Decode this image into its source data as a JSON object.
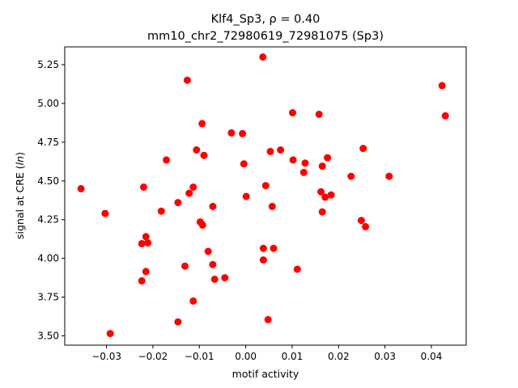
{
  "chart_data": {
    "type": "scatter",
    "title_line1": "Klf4_Sp3, ρ = 0.40",
    "title_line2": "mm10_chr2_72980619_72981075 (Sp3)",
    "xlabel": "motif activity",
    "ylabel": "signal at CRE (ln)",
    "xlim": [
      -0.039,
      0.0475
    ],
    "ylim": [
      3.44,
      5.365
    ],
    "xticks": [
      -0.03,
      -0.02,
      -0.01,
      0.0,
      0.01,
      0.02,
      0.03,
      0.04
    ],
    "xtick_labels": [
      "−0.03",
      "−0.02",
      "−0.01",
      "0.00",
      "0.01",
      "0.02",
      "0.03",
      "0.04"
    ],
    "yticks": [
      3.5,
      3.75,
      4.0,
      4.25,
      4.5,
      4.75,
      5.0,
      5.25
    ],
    "ytick_labels": [
      "3.50",
      "3.75",
      "4.00",
      "4.25",
      "4.50",
      "4.75",
      "5.00",
      "5.25"
    ],
    "grid": false,
    "marker_color": "#ff0000",
    "points": [
      {
        "x": -0.0355,
        "y": 4.45
      },
      {
        "x": -0.0303,
        "y": 4.29
      },
      {
        "x": -0.0292,
        "y": 3.515
      },
      {
        "x": -0.0224,
        "y": 4.095
      },
      {
        "x": -0.0224,
        "y": 3.855
      },
      {
        "x": -0.022,
        "y": 4.46
      },
      {
        "x": -0.0215,
        "y": 4.14
      },
      {
        "x": -0.0215,
        "y": 3.915
      },
      {
        "x": -0.0211,
        "y": 4.1
      },
      {
        "x": -0.0182,
        "y": 4.305
      },
      {
        "x": -0.0171,
        "y": 4.635
      },
      {
        "x": -0.0146,
        "y": 4.36
      },
      {
        "x": -0.0146,
        "y": 3.59
      },
      {
        "x": -0.0131,
        "y": 3.95
      },
      {
        "x": -0.0126,
        "y": 5.15
      },
      {
        "x": -0.0122,
        "y": 4.42
      },
      {
        "x": -0.0113,
        "y": 4.46
      },
      {
        "x": -0.0113,
        "y": 3.725
      },
      {
        "x": -0.0106,
        "y": 4.7
      },
      {
        "x": -0.0098,
        "y": 4.235
      },
      {
        "x": -0.0094,
        "y": 4.87
      },
      {
        "x": -0.0093,
        "y": 4.215
      },
      {
        "x": -0.009,
        "y": 4.665
      },
      {
        "x": -0.0081,
        "y": 4.045
      },
      {
        "x": -0.0071,
        "y": 4.335
      },
      {
        "x": -0.0071,
        "y": 3.96
      },
      {
        "x": -0.0067,
        "y": 3.865
      },
      {
        "x": -0.0045,
        "y": 3.875
      },
      {
        "x": -0.0031,
        "y": 4.81
      },
      {
        "x": -0.0007,
        "y": 4.805
      },
      {
        "x": -0.0004,
        "y": 4.61
      },
      {
        "x": 0.0001,
        "y": 4.4
      },
      {
        "x": 0.0037,
        "y": 5.3
      },
      {
        "x": 0.0038,
        "y": 4.065
      },
      {
        "x": 0.0038,
        "y": 3.99
      },
      {
        "x": 0.0043,
        "y": 4.47
      },
      {
        "x": 0.0048,
        "y": 3.605
      },
      {
        "x": 0.0053,
        "y": 4.69
      },
      {
        "x": 0.0057,
        "y": 4.335
      },
      {
        "x": 0.006,
        "y": 4.065
      },
      {
        "x": 0.0075,
        "y": 4.7
      },
      {
        "x": 0.0101,
        "y": 4.94
      },
      {
        "x": 0.0102,
        "y": 4.635
      },
      {
        "x": 0.0111,
        "y": 3.93
      },
      {
        "x": 0.0125,
        "y": 4.555
      },
      {
        "x": 0.0128,
        "y": 4.615
      },
      {
        "x": 0.0158,
        "y": 4.93
      },
      {
        "x": 0.0162,
        "y": 4.43
      },
      {
        "x": 0.0165,
        "y": 4.595
      },
      {
        "x": 0.0165,
        "y": 4.3
      },
      {
        "x": 0.0171,
        "y": 4.395
      },
      {
        "x": 0.0176,
        "y": 4.65
      },
      {
        "x": 0.0184,
        "y": 4.41
      },
      {
        "x": 0.0227,
        "y": 4.53
      },
      {
        "x": 0.0249,
        "y": 4.245
      },
      {
        "x": 0.0253,
        "y": 4.71
      },
      {
        "x": 0.0258,
        "y": 4.205
      },
      {
        "x": 0.0309,
        "y": 4.53
      },
      {
        "x": 0.0423,
        "y": 5.115
      },
      {
        "x": 0.043,
        "y": 4.92
      }
    ]
  }
}
